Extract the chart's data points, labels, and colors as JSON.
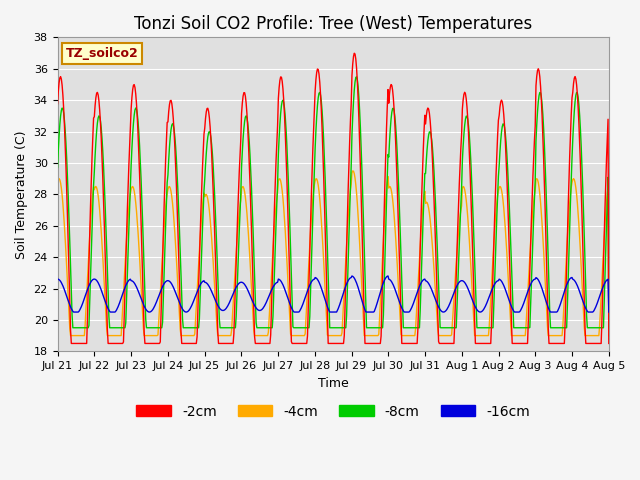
{
  "title": "Tonzi Soil CO2 Profile: Tree (West) Temperatures",
  "xlabel": "Time",
  "ylabel": "Soil Temperature (C)",
  "ylim": [
    18,
    38
  ],
  "xtick_labels": [
    "Jul 21",
    "Jul 22",
    "Jul 23",
    "Jul 24",
    "Jul 25",
    "Jul 26",
    "Jul 27",
    "Jul 28",
    "Jul 29",
    "Jul 30",
    "Jul 31",
    "Aug 1",
    "Aug 2",
    "Aug 3",
    "Aug 4",
    "Aug 5"
  ],
  "legend_entries": [
    "-2cm",
    "-4cm",
    "-8cm",
    "-16cm"
  ],
  "line_colors": [
    "#ff0000",
    "#ffaa00",
    "#00cc00",
    "#0000dd"
  ],
  "bg_color": "#e0e0e0",
  "fig_color": "#f5f5f5",
  "label_box_text": "TZ_soilco2",
  "label_box_facecolor": "#ffffcc",
  "label_box_edgecolor": "#cc8800",
  "label_text_color": "#990000",
  "title_fontsize": 12,
  "axis_fontsize": 9,
  "tick_fontsize": 8,
  "legend_fontsize": 10,
  "linewidth": 1.0,
  "n_days": 15,
  "samples_per_day": 48,
  "base_temp": 21.5,
  "peak_hour": 0.58,
  "amp_2cm": [
    14.0,
    13.0,
    13.5,
    12.5,
    12.0,
    13.0,
    14.0,
    14.5,
    15.5,
    13.5,
    12.0,
    13.0,
    12.5,
    14.5,
    14.0
  ],
  "amp_4cm": [
    7.5,
    7.0,
    7.0,
    7.0,
    6.5,
    7.0,
    7.5,
    7.5,
    8.0,
    7.0,
    6.0,
    7.0,
    7.0,
    7.5,
    7.5
  ],
  "amp_8cm": [
    12.0,
    11.5,
    12.0,
    11.0,
    10.5,
    11.5,
    12.5,
    13.0,
    14.0,
    12.0,
    10.5,
    11.5,
    11.0,
    13.0,
    13.0
  ],
  "amp_16cm": [
    1.1,
    1.1,
    1.0,
    1.0,
    0.9,
    0.9,
    1.1,
    1.2,
    1.3,
    1.1,
    1.0,
    1.0,
    1.1,
    1.2,
    1.1
  ],
  "phase_2": 0.0,
  "phase_4": 0.04,
  "phase_8": -0.05,
  "phase_16": 0.08
}
